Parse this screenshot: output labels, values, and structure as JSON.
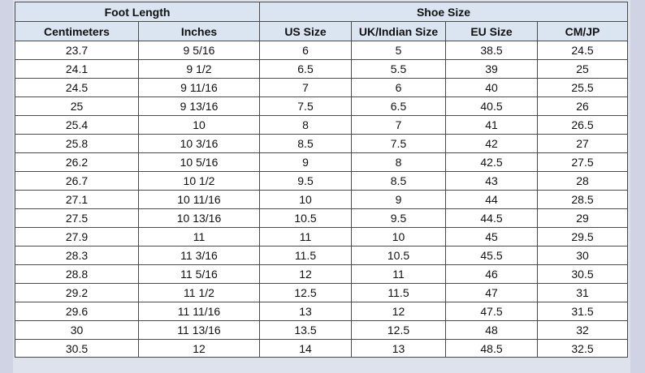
{
  "table": {
    "group_headers": {
      "foot_length": "Foot Length",
      "shoe_size": "Shoe Size"
    },
    "columns": [
      "Centimeters",
      "Inches",
      "US Size",
      "UK/Indian Size",
      "EU Size",
      "CM/JP"
    ],
    "rows": [
      [
        "23.7",
        "9 5/16",
        "6",
        "5",
        "38.5",
        "24.5"
      ],
      [
        "24.1",
        "9 1/2",
        "6.5",
        "5.5",
        "39",
        "25"
      ],
      [
        "24.5",
        "9 11/16",
        "7",
        "6",
        "40",
        "25.5"
      ],
      [
        "25",
        "9 13/16",
        "7.5",
        "6.5",
        "40.5",
        "26"
      ],
      [
        "25.4",
        "10",
        "8",
        "7",
        "41",
        "26.5"
      ],
      [
        "25.8",
        "10 3/16",
        "8.5",
        "7.5",
        "42",
        "27"
      ],
      [
        "26.2",
        "10 5/16",
        "9",
        "8",
        "42.5",
        "27.5"
      ],
      [
        "26.7",
        "10 1/2",
        "9.5",
        "8.5",
        "43",
        "28"
      ],
      [
        "27.1",
        "10 11/16",
        "10",
        "9",
        "44",
        "28.5"
      ],
      [
        "27.5",
        "10 13/16",
        "10.5",
        "9.5",
        "44.5",
        "29"
      ],
      [
        "27.9",
        "11",
        "11",
        "10",
        "45",
        "29.5"
      ],
      [
        "28.3",
        "11 3/16",
        "11.5",
        "10.5",
        "45.5",
        "30"
      ],
      [
        "28.8",
        "11 5/16",
        "12",
        "11",
        "46",
        "30.5"
      ],
      [
        "29.2",
        "11 1/2",
        "12.5",
        "11.5",
        "47",
        "31"
      ],
      [
        "29.6",
        "11 11/16",
        "13",
        "12",
        "47.5",
        "31.5"
      ],
      [
        "30",
        "11 13/16",
        "13.5",
        "12.5",
        "48",
        "32"
      ],
      [
        "30.5",
        "12",
        "14",
        "13",
        "48.5",
        "32.5"
      ]
    ]
  }
}
